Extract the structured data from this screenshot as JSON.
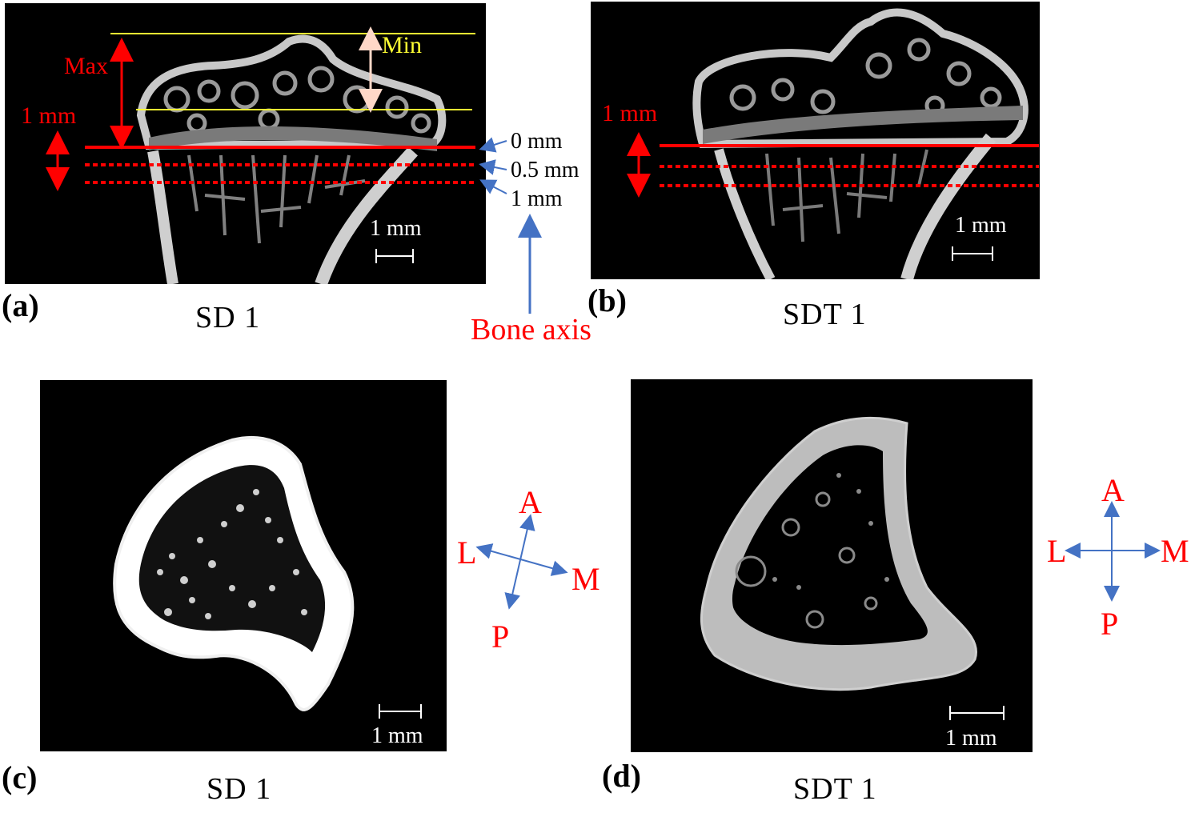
{
  "panels": {
    "a": {
      "label": "(a)",
      "caption": "SD 1",
      "scalebar": "1 mm",
      "max_label": "Max",
      "min_label": "Min",
      "one_mm_label": "1 mm",
      "levels": [
        "0 mm",
        "0.5 mm",
        "1 mm"
      ],
      "bone_axis": "Bone axis"
    },
    "b": {
      "label": "(b)",
      "caption": "SDT 1",
      "scalebar": "1 mm",
      "one_mm_label": "1 mm"
    },
    "c": {
      "label": "(c)",
      "caption": "SD 1",
      "scalebar": "1 mm",
      "compass": {
        "a": "A",
        "p": "P",
        "l": "L",
        "m": "M"
      }
    },
    "d": {
      "label": "(d)",
      "caption": "SDT 1",
      "scalebar": "1 mm",
      "compass": {
        "a": "A",
        "p": "P",
        "l": "L",
        "m": "M"
      }
    }
  },
  "colors": {
    "annotation_red": "#ff0000",
    "guide_yellow": "#ffff33",
    "arrow_blue": "#4472c4",
    "bone_gray": "#bdbdbd"
  }
}
